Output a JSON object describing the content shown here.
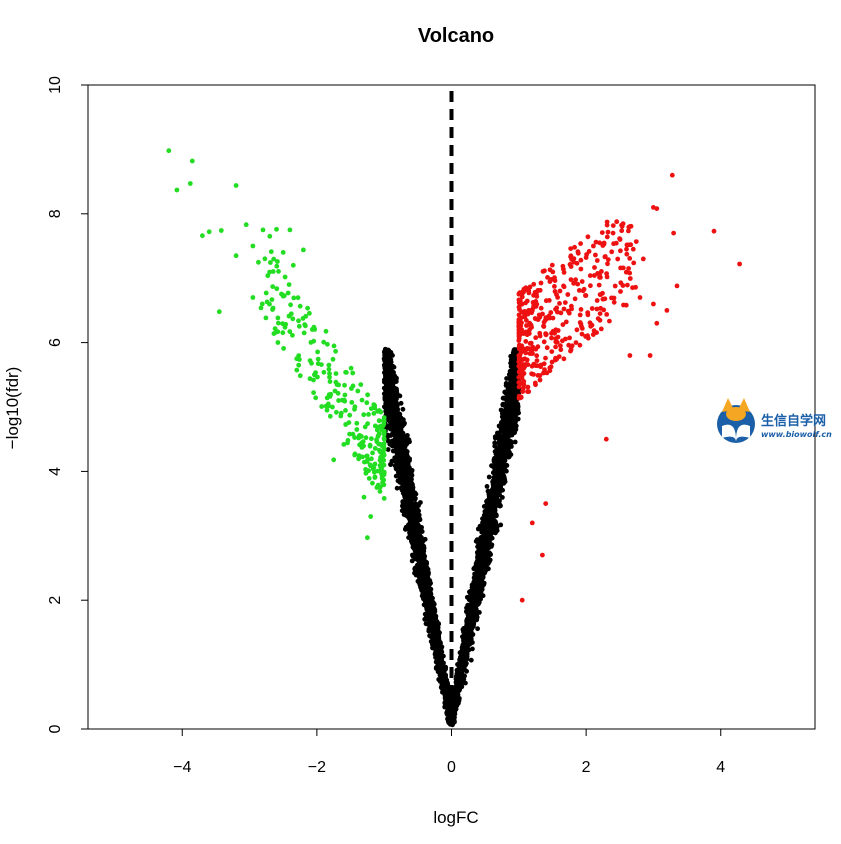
{
  "chart_data": {
    "type": "scatter",
    "title": "Volcano",
    "xlabel": "logFC",
    "ylabel": "−log10(fdr)",
    "xlim": [
      -5.4,
      5.4
    ],
    "ylim": [
      0,
      10
    ],
    "x_ticks": [
      -4,
      -2,
      0,
      2,
      4
    ],
    "x_tick_labels": [
      "−4",
      "−2",
      "0",
      "2",
      "4"
    ],
    "y_ticks": [
      0,
      2,
      4,
      6,
      8,
      10
    ],
    "y_tick_labels": [
      "0",
      "2",
      "4",
      "6",
      "8",
      "10"
    ],
    "grid": false,
    "threshold_line": {
      "x": 0,
      "style": "dashed",
      "color": "#000000"
    },
    "point_colors": {
      "down": "#22dd22",
      "up": "#ee1111",
      "ns": "#000000"
    },
    "series": [
      {
        "group": "down",
        "color": "#22dd22",
        "highlight_points": [
          [
            -4.2,
            8.98
          ],
          [
            -3.85,
            8.82
          ],
          [
            -4.08,
            8.37
          ],
          [
            -3.88,
            8.47
          ],
          [
            -3.2,
            8.44
          ],
          [
            -3.05,
            7.83
          ],
          [
            -3.7,
            7.66
          ],
          [
            -3.6,
            7.72
          ],
          [
            -3.42,
            7.74
          ],
          [
            -2.95,
            7.5
          ],
          [
            -2.8,
            7.75
          ],
          [
            -2.6,
            7.76
          ],
          [
            -2.4,
            7.75
          ],
          [
            -2.2,
            7.44
          ],
          [
            -3.2,
            7.35
          ],
          [
            -3.45,
            6.48
          ],
          [
            -2.95,
            6.7
          ],
          [
            -2.5,
            6.72
          ],
          [
            -2.3,
            5.75
          ],
          [
            -2.1,
            5.72
          ],
          [
            -2.05,
            5.42
          ],
          [
            -1.85,
            4.95
          ],
          [
            -1.6,
            4.42
          ],
          [
            -1.75,
            4.18
          ],
          [
            -1.25,
            2.97
          ],
          [
            -1.2,
            3.3
          ],
          [
            -1.3,
            3.6
          ],
          [
            -2.5,
            7.4
          ],
          [
            -2.7,
            7.65
          ],
          [
            -2.35,
            7.2
          ]
        ],
        "band": {
          "x_min": -1.0,
          "x_range": 1.9,
          "y_base": 4.0,
          "y_slope": 1.55,
          "y_spread": 1.3,
          "count": 260
        }
      },
      {
        "group": "up",
        "color": "#ee1111",
        "highlight_points": [
          [
            3.28,
            8.6
          ],
          [
            3.0,
            8.1
          ],
          [
            3.05,
            8.08
          ],
          [
            3.9,
            7.73
          ],
          [
            4.28,
            7.22
          ],
          [
            3.3,
            7.7
          ],
          [
            3.35,
            6.88
          ],
          [
            3.0,
            6.6
          ],
          [
            2.85,
            7.3
          ],
          [
            2.0,
            7.32
          ],
          [
            2.2,
            7.55
          ],
          [
            2.8,
            6.7
          ],
          [
            3.05,
            6.3
          ],
          [
            2.6,
            7.45
          ],
          [
            2.4,
            7.7
          ],
          [
            3.2,
            6.5
          ],
          [
            2.65,
            5.8
          ],
          [
            2.95,
            5.8
          ],
          [
            2.3,
            4.5
          ],
          [
            1.35,
            2.7
          ],
          [
            1.05,
            2.0
          ],
          [
            1.2,
            3.2
          ],
          [
            1.4,
            3.5
          ],
          [
            2.7,
            7.45
          ],
          [
            1.85,
            6.0
          ]
        ],
        "band": {
          "x_min": 1.0,
          "x_range": 1.75,
          "y_base": 5.7,
          "y_slope": 0.9,
          "y_spread": 1.7,
          "count": 420
        }
      },
      {
        "group": "ns",
        "color": "#000000",
        "range": "-1 < logFC < 1",
        "count": 5200
      }
    ]
  },
  "watermark": {
    "name": "生信自学网",
    "url": "www.biowolf.cn",
    "colors": {
      "primary": "#1b5fa8",
      "accent": "#f5a623"
    },
    "icon": "book-fox-logo"
  }
}
